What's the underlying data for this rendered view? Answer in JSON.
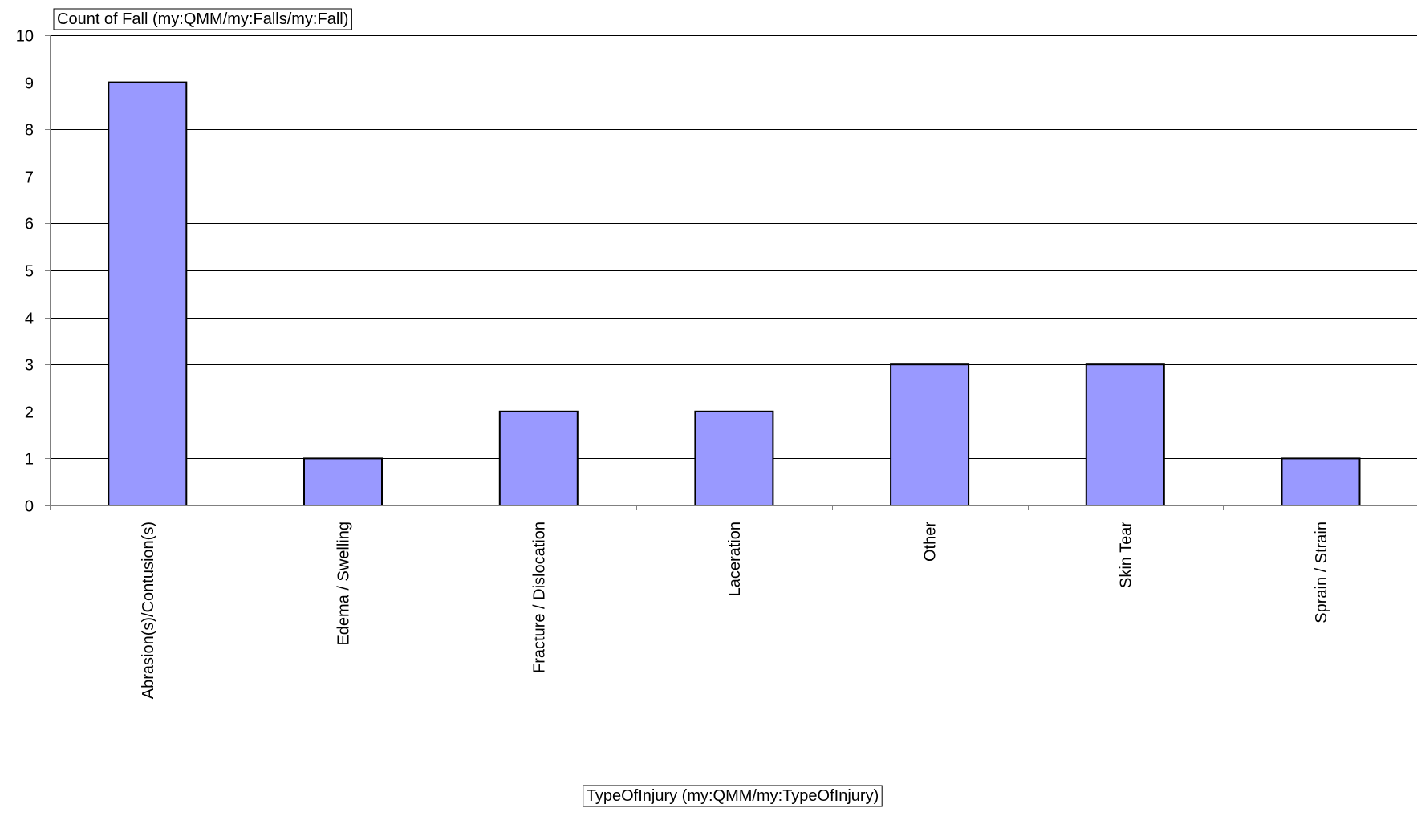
{
  "chart_data": {
    "type": "bar",
    "title": "",
    "ylabel": "Count of Fall (my:QMM/my:Falls/my:Fall)",
    "xlabel": "TypeOfInjury (my:QMM/my:TypeOfInjury)",
    "categories": [
      "Abrasion(s)/Contusion(s)",
      "Edema / Swelling",
      "Fracture / Dislocation",
      "Laceration",
      "Other",
      "Skin Tear",
      "Sprain / Strain"
    ],
    "values": [
      9,
      1,
      2,
      2,
      3,
      3,
      1
    ],
    "ylim": [
      0,
      10
    ],
    "yticks": [
      "0",
      "1",
      "2",
      "3",
      "4",
      "5",
      "6",
      "7",
      "8",
      "9",
      "10"
    ],
    "grid": true,
    "legend": "none",
    "colors": {
      "bar_fill": "#9999ff",
      "bar_stroke": "#000000",
      "grid": "#000000",
      "axis": "#808080"
    }
  }
}
